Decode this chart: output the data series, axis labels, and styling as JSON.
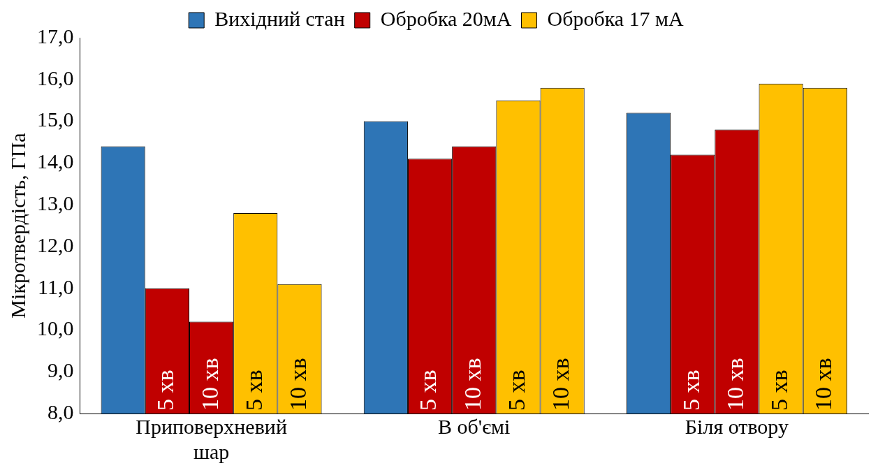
{
  "chart_data": {
    "type": "bar",
    "ylabel": "Мікротвердість, ГПа",
    "categories": [
      "Приповерхневий шар",
      "В об'ємі",
      "Біля отвору"
    ],
    "series": [
      {
        "name": "Вихідний стан",
        "color": "#2e75b6",
        "values": [
          14.4,
          15.0,
          15.2
        ]
      },
      {
        "name": "Обробка 20мА",
        "color": "#c00000",
        "values": [
          11.0,
          14.1,
          14.2
        ]
      },
      {
        "color": "#c00000",
        "values": [
          10.2,
          14.4,
          14.8
        ]
      },
      {
        "name": "Обробка 17 мА",
        "color": "#ffc000",
        "values": [
          12.8,
          15.5,
          15.9
        ]
      },
      {
        "color": "#ffc000",
        "values": [
          11.1,
          15.8,
          15.8
        ]
      }
    ],
    "annotations": [
      "5 хв",
      "10 хв",
      "5 хв",
      "10 хв",
      "5 хв",
      "10 хв",
      "5 хв",
      "10 хв",
      "5 хв",
      "10 хв",
      "5 хв",
      "10 хв"
    ],
    "ylim": [
      8,
      17
    ],
    "yticks": [
      {
        "value": 8,
        "label": "8,0"
      },
      {
        "value": 9,
        "label": "9,0"
      },
      {
        "value": 10,
        "label": "10,0"
      },
      {
        "value": 11,
        "label": "11,0"
      },
      {
        "value": 12,
        "label": "12,0"
      },
      {
        "value": 13,
        "label": "13,0"
      },
      {
        "value": 14,
        "label": "14,0"
      },
      {
        "value": 15,
        "label": "15,0"
      },
      {
        "value": 16,
        "label": "16,0"
      },
      {
        "value": 17,
        "label": "17,0"
      }
    ],
    "grid": false,
    "legend": "top"
  }
}
